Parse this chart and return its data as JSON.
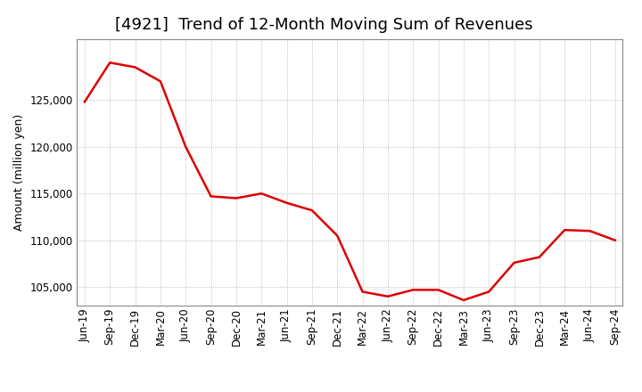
{
  "title": "[4921]  Trend of 12-Month Moving Sum of Revenues",
  "ylabel": "Amount (million yen)",
  "line_color": "#dd0000",
  "background_color": "#ffffff",
  "grid_color": "#aaaaaa",
  "x_labels": [
    "Jun-19",
    "Sep-19",
    "Dec-19",
    "Mar-20",
    "Jun-20",
    "Sep-20",
    "Dec-20",
    "Mar-21",
    "Jun-21",
    "Sep-21",
    "Dec-21",
    "Mar-22",
    "Jun-22",
    "Sep-22",
    "Dec-22",
    "Mar-23",
    "Jun-23",
    "Sep-23",
    "Dec-23",
    "Mar-24",
    "Jun-24",
    "Sep-24"
  ],
  "values": [
    124800,
    129000,
    128500,
    127000,
    120000,
    114700,
    114500,
    115000,
    114000,
    113200,
    110500,
    104500,
    104000,
    104700,
    104700,
    103600,
    104500,
    107600,
    108200,
    111100,
    111000,
    110000
  ],
  "ylim": [
    103000,
    131500
  ],
  "yticks": [
    105000,
    110000,
    115000,
    120000,
    125000
  ],
  "title_fontsize": 13,
  "axis_fontsize": 9,
  "tick_fontsize": 8.5,
  "figsize": [
    7.2,
    4.4
  ],
  "dpi": 100
}
